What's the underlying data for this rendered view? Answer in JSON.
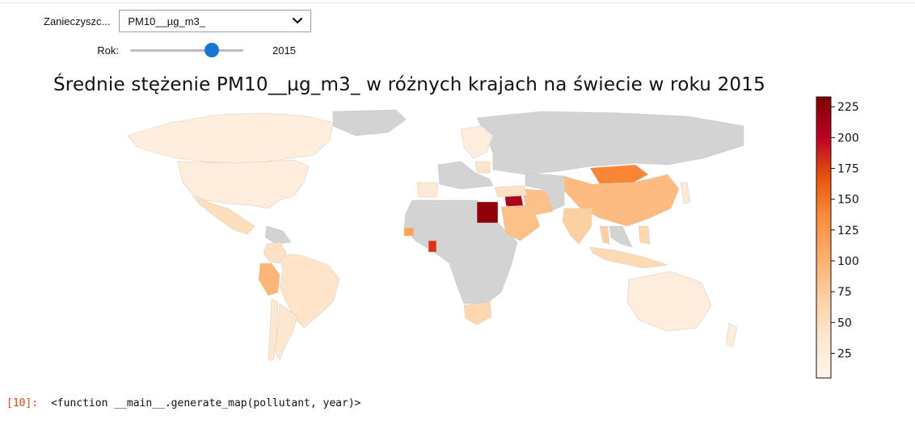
{
  "controls": {
    "pollutant_label": "Zanieczyszc...",
    "pollutant_value": "PM10__µg_m3_",
    "year_label": "Rok:",
    "year_value": "2015",
    "year_fraction": 0.72
  },
  "colors": {
    "no_data": "#d3d3d3",
    "accent": "#1976d2",
    "colormap": [
      "#fff5eb",
      "#fee6ce",
      "#fdd0a2",
      "#fdae6b",
      "#fd8d3c",
      "#e6550d",
      "#bd0026",
      "#800000"
    ]
  },
  "chart_data": {
    "type": "heatmap",
    "title": "Średnie stężenie PM10__µg_m3_ w różnych krajach na świecie w roku 2015",
    "colorbar": {
      "ticks": [
        25,
        50,
        75,
        100,
        125,
        150,
        175,
        200,
        225
      ],
      "range": [
        5,
        233
      ],
      "orientation": "vertical"
    },
    "regions": [
      {
        "name": "Egypt",
        "value": 225
      },
      {
        "name": "Iraq",
        "value": 210
      },
      {
        "name": "Kuwait",
        "value": 200
      },
      {
        "name": "Ghana",
        "value": 180
      },
      {
        "name": "Mongolia",
        "value": 140
      },
      {
        "name": "Senegal",
        "value": 115
      },
      {
        "name": "Peru",
        "value": 95
      },
      {
        "name": "China",
        "value": 90
      },
      {
        "name": "Saudi Arabia",
        "value": 85
      },
      {
        "name": "Iran",
        "value": 85
      },
      {
        "name": "India",
        "value": 70
      },
      {
        "name": "Thailand",
        "value": 70
      },
      {
        "name": "Philippines",
        "value": 60
      },
      {
        "name": "Mexico",
        "value": 50
      },
      {
        "name": "Brazil",
        "value": 40
      },
      {
        "name": "Argentina",
        "value": 35
      },
      {
        "name": "Chile",
        "value": 35
      },
      {
        "name": "Colombia",
        "value": 45
      },
      {
        "name": "Indonesia",
        "value": 55
      },
      {
        "name": "South Africa",
        "value": 60
      },
      {
        "name": "Turkey",
        "value": 45
      },
      {
        "name": "Spain",
        "value": 30
      },
      {
        "name": "Poland",
        "value": 40
      },
      {
        "name": "Scandinavia",
        "value": 20
      },
      {
        "name": "United States",
        "value": 22
      },
      {
        "name": "Canada",
        "value": 20
      },
      {
        "name": "Australia",
        "value": 22
      },
      {
        "name": "New Zealand",
        "value": 20
      },
      {
        "name": "Japan",
        "value": 28
      }
    ]
  },
  "output": {
    "prompt": "[10]:",
    "text": "<function __main__.generate_map(pollutant, year)>"
  }
}
